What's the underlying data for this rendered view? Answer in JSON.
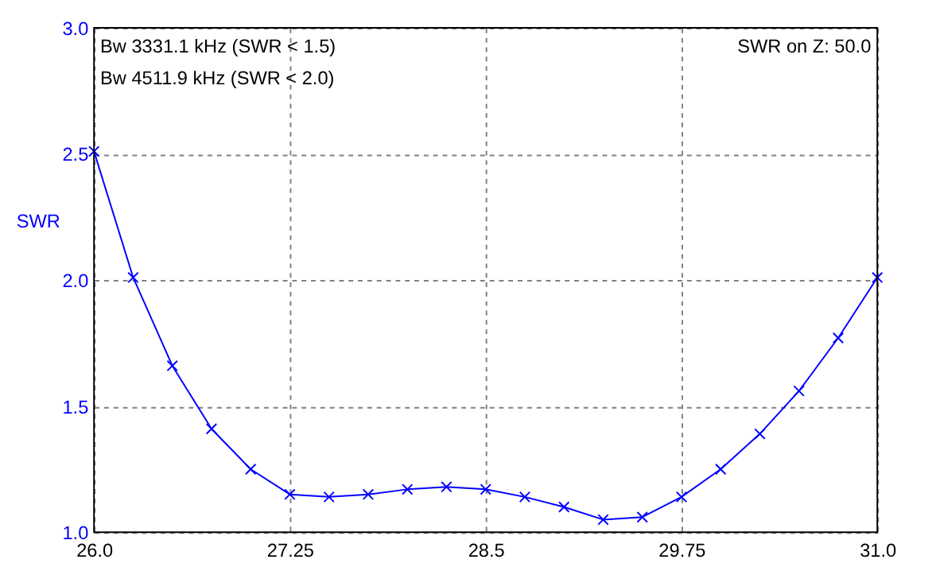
{
  "chart_data": {
    "type": "line",
    "ylabel": "SWR",
    "annotations": [
      "Bw 3331.1 kHz (SWR < 1.5)",
      "Bw 4511.9 kHz (SWR < 2.0)",
      "SWR on Z: 50.0"
    ],
    "x": [
      26.0,
      26.25,
      26.5,
      26.75,
      27.0,
      27.25,
      27.5,
      27.75,
      28.0,
      28.25,
      28.5,
      28.75,
      29.0,
      29.25,
      29.5,
      29.75,
      30.0,
      30.25,
      30.5,
      30.75,
      31.0
    ],
    "series": [
      {
        "color": "#0000ff",
        "values": [
          2.51,
          2.01,
          1.66,
          1.41,
          1.25,
          1.15,
          1.14,
          1.15,
          1.17,
          1.18,
          1.17,
          1.14,
          1.1,
          1.05,
          1.06,
          1.14,
          1.25,
          1.39,
          1.56,
          1.77,
          2.01
        ]
      }
    ],
    "xlim": [
      26.0,
      31.0
    ],
    "xticks": [
      {
        "value": 26.0,
        "label": "26.0"
      },
      27.25,
      28.5,
      29.75,
      {
        "value": 31.0,
        "label": "31.0"
      }
    ],
    "ylim": [
      1.0,
      3.0
    ],
    "yticks": [
      {
        "value": 1.0,
        "label": "1.0"
      },
      1.5,
      {
        "value": 2.0,
        "label": "2.0"
      },
      2.5,
      {
        "value": 3.0,
        "label": "3.0"
      }
    ],
    "grid": true,
    "marker": "cross",
    "line_style": "solid"
  }
}
